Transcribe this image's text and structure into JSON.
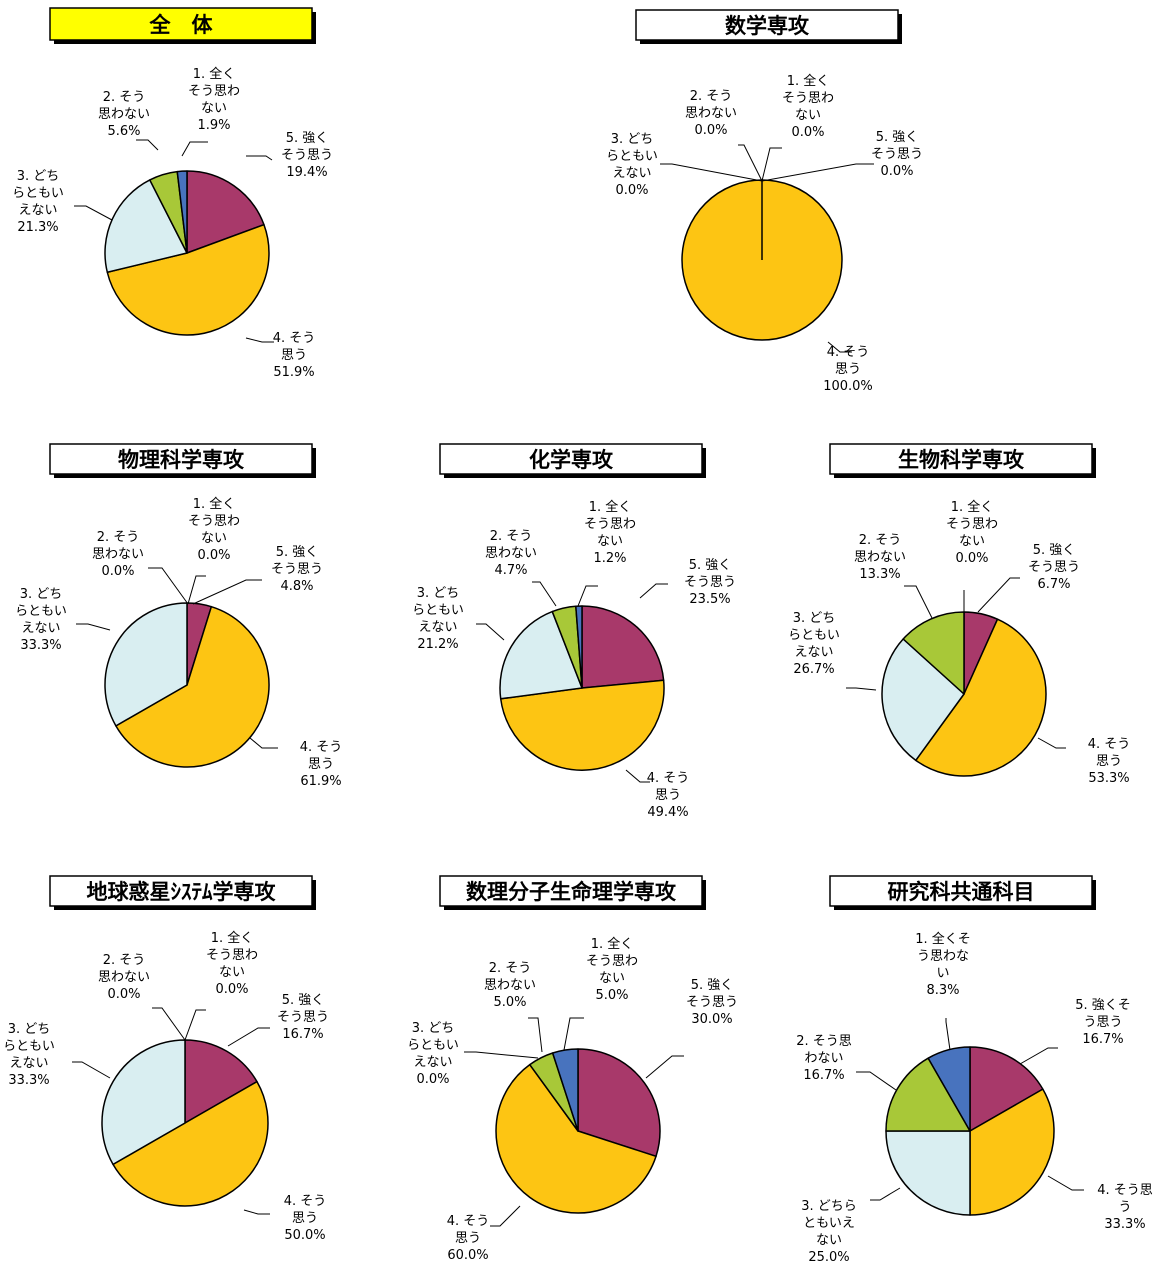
{
  "colors": {
    "strongly_agree": "#A8396A",
    "agree": "#FDC513",
    "neutral": "#D9EEF1",
    "disagree": "#A8C838",
    "strongly_disagree": "#4873BE",
    "outline": "#000000",
    "title_highlight": "#FFFF00"
  },
  "chart_data": [
    {
      "type": "pie",
      "title": "全　体",
      "categories": [
        "5. 強くそう思う",
        "4. そう思う",
        "3. どちらともいえない",
        "2. そう思わない",
        "1. 全くそう思わない"
      ],
      "values": [
        19.4,
        51.9,
        21.3,
        5.6,
        1.9
      ],
      "labels": [
        [
          "5. 強く",
          "そう思う",
          "19.4%"
        ],
        [
          "4. そう",
          "思う",
          "51.9%"
        ],
        [
          "3. どち",
          "らともい",
          "えない",
          "21.3%"
        ],
        [
          "2. そう",
          "思わない",
          "5.6%"
        ],
        [
          "1. 全く",
          "そう思わ",
          "ない",
          "1.9%"
        ]
      ]
    },
    {
      "type": "pie",
      "title": "数学専攻",
      "categories": [
        "5. 強くそう思う",
        "4. そう思う",
        "3. どちらともいえない",
        "2. そう思わない",
        "1. 全くそう思わない"
      ],
      "values": [
        0.0,
        100.0,
        0.0,
        0.0,
        0.0
      ],
      "labels": [
        [
          "5. 強く",
          "そう思う",
          "0.0%"
        ],
        [
          "4. そう",
          "思う",
          "100.0%"
        ],
        [
          "3. どち",
          "らともい",
          "えない",
          "0.0%"
        ],
        [
          "2. そう",
          "思わない",
          "0.0%"
        ],
        [
          "1. 全く",
          "そう思わ",
          "ない",
          "0.0%"
        ]
      ]
    },
    {
      "type": "pie",
      "title": "物理科学専攻",
      "categories": [
        "5. 強くそう思う",
        "4. そう思う",
        "3. どちらともいえない",
        "2. そう思わない",
        "1. 全くそう思わない"
      ],
      "values": [
        4.8,
        61.9,
        33.3,
        0.0,
        0.0
      ],
      "labels": [
        [
          "5. 強く",
          "そう思う",
          "4.8%"
        ],
        [
          "4. そう",
          "思う",
          "61.9%"
        ],
        [
          "3. どち",
          "らともい",
          "えない",
          "33.3%"
        ],
        [
          "2. そう",
          "思わない",
          "0.0%"
        ],
        [
          "1. 全く",
          "そう思わ",
          "ない",
          "0.0%"
        ]
      ]
    },
    {
      "type": "pie",
      "title": "化学専攻",
      "categories": [
        "5. 強くそう思う",
        "4. そう思う",
        "3. どちらともいえない",
        "2. そう思わない",
        "1. 全くそう思わない"
      ],
      "values": [
        23.5,
        49.4,
        21.2,
        4.7,
        1.2
      ],
      "labels": [
        [
          "5. 強く",
          "そう思う",
          "23.5%"
        ],
        [
          "4. そう",
          "思う",
          "49.4%"
        ],
        [
          "3. どち",
          "らともい",
          "えない",
          "21.2%"
        ],
        [
          "2. そう",
          "思わない",
          "4.7%"
        ],
        [
          "1. 全く",
          "そう思わ",
          "ない",
          "1.2%"
        ]
      ]
    },
    {
      "type": "pie",
      "title": "生物科学専攻",
      "categories": [
        "5. 強くそう思う",
        "4. そう思う",
        "3. どちらともいえない",
        "2. そう思わない",
        "1. 全くそう思わない"
      ],
      "values": [
        6.7,
        53.3,
        26.7,
        13.3,
        0.0
      ],
      "labels": [
        [
          "5. 強く",
          "そう思う",
          "6.7%"
        ],
        [
          "4. そう",
          "思う",
          "53.3%"
        ],
        [
          "3. どち",
          "らともい",
          "えない",
          "26.7%"
        ],
        [
          "2. そう",
          "思わない",
          "13.3%"
        ],
        [
          "1. 全く",
          "そう思わ",
          "ない",
          "0.0%"
        ]
      ]
    },
    {
      "type": "pie",
      "title": "地球惑星ｼｽﾃﾑ学専攻",
      "categories": [
        "5. 強くそう思う",
        "4. そう思う",
        "3. どちらともいえない",
        "2. そう思わない",
        "1. 全くそう思わない"
      ],
      "values": [
        16.7,
        50.0,
        33.3,
        0.0,
        0.0
      ],
      "labels": [
        [
          "5. 強く",
          "そう思う",
          "16.7%"
        ],
        [
          "4. そう",
          "思う",
          "50.0%"
        ],
        [
          "3. どち",
          "らともい",
          "えない",
          "33.3%"
        ],
        [
          "2. そう",
          "思わない",
          "0.0%"
        ],
        [
          "1. 全く",
          "そう思わ",
          "ない",
          "0.0%"
        ]
      ]
    },
    {
      "type": "pie",
      "title": "数理分子生命理学専攻",
      "categories": [
        "5. 強くそう思う",
        "4. そう思う",
        "3. どちらともいえない",
        "2. そう思わない",
        "1. 全くそう思わない"
      ],
      "values": [
        30.0,
        60.0,
        0.0,
        5.0,
        5.0
      ],
      "labels": [
        [
          "5. 強く",
          "そう思う",
          "30.0%"
        ],
        [
          "4. そう",
          "思う",
          "60.0%"
        ],
        [
          "3. どち",
          "らともい",
          "えない",
          "0.0%"
        ],
        [
          "2. そう",
          "思わない",
          "5.0%"
        ],
        [
          "1. 全く",
          "そう思わ",
          "ない",
          "5.0%"
        ]
      ]
    },
    {
      "type": "pie",
      "title": "研究科共通科目",
      "categories": [
        "5. 強くそう思う",
        "4. そう思う",
        "3. どちらともいえない",
        "2. そう思わない",
        "1. 全くそう思わない"
      ],
      "values": [
        16.7,
        33.3,
        25.0,
        16.7,
        8.3
      ],
      "labels": [
        [
          "5. 強くそ",
          "う思う",
          "16.7%"
        ],
        [
          "4. そう思",
          "う",
          "33.3%"
        ],
        [
          "3. どちら",
          "ともいえ",
          "ない",
          "25.0%"
        ],
        [
          "2. そう思",
          "わない",
          "16.7%"
        ],
        [
          "1. 全くそ",
          "う思わな",
          "い",
          "8.3%"
        ]
      ]
    }
  ]
}
